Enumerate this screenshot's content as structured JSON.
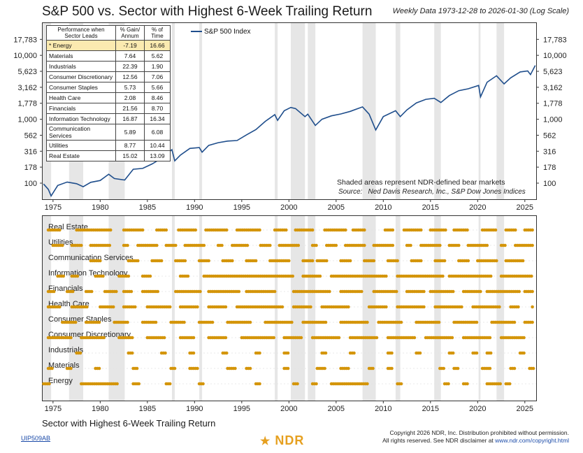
{
  "header": {
    "title": "S&P 500 vs. Sector with Highest 6-Week Trailing Return",
    "subtitle": "Weekly Data 1973-12-28 to 2026-01-30 (Log Scale)"
  },
  "table": {
    "headers": [
      "Performance when Sector Leads",
      "% Gain/ Annum",
      "% of Time"
    ],
    "rows": [
      {
        "sector": "* Energy",
        "gain": "-7.19",
        "time": "16.66",
        "highlight": true
      },
      {
        "sector": "Materials",
        "gain": "7.64",
        "time": "5.62"
      },
      {
        "sector": "Industrials",
        "gain": "22.39",
        "time": "1.90"
      },
      {
        "sector": "Consumer Discretionary",
        "gain": "12.56",
        "time": "7.06"
      },
      {
        "sector": "Consumer Staples",
        "gain": "5.73",
        "time": "5.66"
      },
      {
        "sector": "Health Care",
        "gain": "2.08",
        "time": "8.46"
      },
      {
        "sector": "Financials",
        "gain": "21.56",
        "time": "8.70"
      },
      {
        "sector": "Information Technology",
        "gain": "16.87",
        "time": "16.34"
      },
      {
        "sector": "Communication Services",
        "gain": "5.89",
        "time": "6.08"
      },
      {
        "sector": "Utilities",
        "gain": "8.77",
        "time": "10.44"
      },
      {
        "sector": "Real Estate",
        "gain": "15.02",
        "time": "13.09"
      }
    ]
  },
  "legend": {
    "label": "S&P 500 Index"
  },
  "note": "Shaded areas represent NDR-defined bear markets",
  "source_label": "Source:",
  "source_text": "Ned Davis Research, Inc., S&P Dow Jones Indices",
  "bottom_title": "Sector with Highest 6-Week Trailing Return",
  "footer": {
    "code": "UIP509AB",
    "logo": "NDR",
    "copyright_line1": "Copyright 2026 NDR, Inc. Distribution prohibited without permission.",
    "copyright_line2": "All rights reserved. See NDR disclaimer at",
    "copyright_url": "www.ndr.com/copyright.html"
  },
  "colors": {
    "line": "#1f4e8c",
    "dot": "#d4950a",
    "shade": "#e6e6e6"
  },
  "chart_data": [
    {
      "type": "line",
      "title": "S&P 500 Index",
      "scale": "log",
      "xlim": [
        1973.9,
        2026.2
      ],
      "ylim": [
        56,
        32000
      ],
      "y_ticks": [
        100,
        178,
        316,
        562,
        1000,
        1778,
        3162,
        5623,
        10000,
        17783
      ],
      "x_ticks": [
        1975,
        1980,
        1985,
        1990,
        1995,
        2000,
        2005,
        2010,
        2015,
        2020,
        2025
      ],
      "bear_markets": [
        [
          1973.9,
          1974.8
        ],
        [
          1976.7,
          1978.2
        ],
        [
          1980.9,
          1982.6
        ],
        [
          1987.6,
          1987.9
        ],
        [
          1990.5,
          1990.8
        ],
        [
          1998.5,
          1998.8
        ],
        [
          2000.2,
          2001.7
        ],
        [
          2002.0,
          2002.8
        ],
        [
          2007.8,
          2009.2
        ],
        [
          2011.3,
          2011.8
        ],
        [
          2015.4,
          2016.1
        ],
        [
          2020.1,
          2020.3
        ],
        [
          2022.0,
          2022.8
        ]
      ],
      "series": [
        {
          "name": "S&P 500 Index",
          "x": [
            1974.0,
            1974.5,
            1974.8,
            1975.5,
            1976.5,
            1977.5,
            1978.2,
            1979.0,
            1980.0,
            1980.9,
            1981.5,
            1982.6,
            1983.5,
            1984.5,
            1985.5,
            1986.5,
            1987.6,
            1987.9,
            1988.5,
            1989.5,
            1990.5,
            1990.8,
            1991.5,
            1992.5,
            1993.5,
            1994.5,
            1995.5,
            1996.5,
            1997.5,
            1998.5,
            1998.8,
            1999.5,
            2000.2,
            2000.7,
            2001.7,
            2002.0,
            2002.8,
            2003.5,
            2004.5,
            2005.5,
            2006.5,
            2007.8,
            2008.5,
            2009.2,
            2010.0,
            2011.3,
            2011.8,
            2012.5,
            2013.5,
            2014.5,
            2015.4,
            2016.1,
            2017.0,
            2018.0,
            2019.0,
            2020.1,
            2020.3,
            2021.0,
            2022.0,
            2022.8,
            2023.5,
            2024.5,
            2025.3,
            2025.6,
            2026.1
          ],
          "y": [
            97,
            80,
            63,
            92,
            104,
            98,
            88,
            103,
            110,
            138,
            118,
            112,
            165,
            170,
            200,
            245,
            335,
            223,
            275,
            350,
            360,
            305,
            390,
            430,
            455,
            465,
            570,
            690,
            930,
            1180,
            960,
            1360,
            1530,
            1470,
            1100,
            1200,
            800,
            1000,
            1130,
            1210,
            1330,
            1560,
            1200,
            680,
            1100,
            1360,
            1100,
            1400,
            1800,
            2050,
            2130,
            1830,
            2350,
            2800,
            3000,
            3380,
            2240,
            3800,
            4790,
            3580,
            4450,
            5500,
            5700,
            5000,
            6950
          ]
        }
      ]
    },
    {
      "type": "scatter",
      "title": "Sector with Highest 6-Week Trailing Return",
      "xlim": [
        1973.9,
        2026.2
      ],
      "x_ticks": [
        1975,
        1980,
        1985,
        1990,
        1995,
        2000,
        2005,
        2010,
        2015,
        2020,
        2025
      ],
      "sectors": [
        "Real Estate",
        "Utilities",
        "Communication Services",
        "Information Technology",
        "Financials",
        "Health Care",
        "Consumer Staples",
        "Consumer Discretionary",
        "Industrials",
        "Materials",
        "Energy"
      ],
      "active_periods": [
        [
          [
            1974.5,
            1975.8
          ],
          [
            1977.5,
            1981.2
          ],
          [
            1982.5,
            1984.6
          ],
          [
            1986.0,
            1987.2
          ],
          [
            1988.3,
            1990.3
          ],
          [
            1991.2,
            1993.5
          ],
          [
            1994.5,
            1997.1
          ],
          [
            1998.5,
            1999.9
          ],
          [
            2000.7,
            2002.7
          ],
          [
            2003.8,
            2006.2
          ],
          [
            2006.8,
            2008.1
          ],
          [
            2010.2,
            2011.1
          ],
          [
            2012.2,
            2014.1
          ],
          [
            2015.0,
            2016.8
          ],
          [
            2017.5,
            2019.1
          ],
          [
            2020.5,
            2022.0
          ],
          [
            2023.0,
            2024.2
          ],
          [
            2025.0,
            2025.9
          ]
        ],
        [
          [
            1975.0,
            1976.1
          ],
          [
            1977.0,
            1978.1
          ],
          [
            1979.0,
            1981.1
          ],
          [
            1982.5,
            1983.1
          ],
          [
            1984.0,
            1986.1
          ],
          [
            1987.0,
            1988.1
          ],
          [
            1989.0,
            1991.1
          ],
          [
            1992.5,
            1993.1
          ],
          [
            1994.0,
            1995.7
          ],
          [
            1997.0,
            1998.1
          ],
          [
            1999.0,
            2001.1
          ],
          [
            2002.5,
            2003.1
          ],
          [
            2004.0,
            2005.1
          ],
          [
            2006.0,
            2008.1
          ],
          [
            2009.0,
            2011.1
          ],
          [
            2012.5,
            2013.1
          ],
          [
            2014.0,
            2016.1
          ],
          [
            2017.0,
            2018.1
          ],
          [
            2019.0,
            2021.1
          ],
          [
            2022.5,
            2023.1
          ],
          [
            2024.0,
            2025.9
          ]
        ],
        [
          [
            1979.0,
            1980.1
          ],
          [
            1983.0,
            1984.1
          ],
          [
            1985.5,
            1986.6
          ],
          [
            1988.0,
            1989.1
          ],
          [
            1990.5,
            1991.6
          ],
          [
            1993.0,
            1994.1
          ],
          [
            1995.5,
            1996.6
          ],
          [
            1998.0,
            2000.1
          ],
          [
            2001.5,
            2002.6
          ],
          [
            2003.0,
            2004.1
          ],
          [
            2005.5,
            2006.6
          ],
          [
            2008.0,
            2009.1
          ],
          [
            2010.5,
            2011.6
          ],
          [
            2013.0,
            2014.1
          ],
          [
            2015.5,
            2016.6
          ],
          [
            2018.0,
            2019.1
          ],
          [
            2020.0,
            2022.1
          ],
          [
            2023.0,
            2025.0
          ]
        ],
        [
          [
            1975.5,
            1976.3
          ],
          [
            1977.0,
            1977.8
          ],
          [
            1979.5,
            1980.5
          ],
          [
            1982.0,
            1983.1
          ],
          [
            1984.5,
            1985.5
          ],
          [
            1988.5,
            1989.5
          ],
          [
            1991.0,
            2000.5
          ],
          [
            2001.5,
            2003.5
          ],
          [
            2004.5,
            2010.5
          ],
          [
            2011.5,
            2016.5
          ],
          [
            2017.0,
            2021.5
          ],
          [
            2022.5,
            2025.9
          ]
        ],
        [
          [
            1974.5,
            1975.3
          ],
          [
            1976.5,
            1977.3
          ],
          [
            1978.5,
            1979.3
          ],
          [
            1980.5,
            1981.8
          ],
          [
            1982.5,
            1983.5
          ],
          [
            1984.5,
            1986.2
          ],
          [
            1988.0,
            1990.8
          ],
          [
            1991.5,
            1994.8
          ],
          [
            1995.5,
            1998.6
          ],
          [
            2000.5,
            2004.5
          ],
          [
            2005.5,
            2007.8
          ],
          [
            2009.0,
            2011.5
          ],
          [
            2012.5,
            2014.5
          ],
          [
            2015.0,
            2017.5
          ],
          [
            2018.5,
            2020.5
          ],
          [
            2021.0,
            2024.5
          ],
          [
            2025.0,
            2025.9
          ]
        ],
        [
          [
            1974.5,
            1975.8
          ],
          [
            1977.0,
            1978.8
          ],
          [
            1980.0,
            1981.5
          ],
          [
            1982.5,
            1983.8
          ],
          [
            1985.0,
            1987.5
          ],
          [
            1988.5,
            1990.5
          ],
          [
            1991.5,
            1993.5
          ],
          [
            1994.5,
            1999.5
          ],
          [
            2000.5,
            2002.5
          ],
          [
            2003.5,
            2006.5
          ],
          [
            2008.5,
            2010.5
          ],
          [
            2011.5,
            2014.5
          ],
          [
            2015.5,
            2018.5
          ],
          [
            2019.5,
            2022.5
          ],
          [
            2023.5,
            2024.5
          ],
          [
            2025.8,
            2025.95
          ]
        ],
        [
          [
            1976.0,
            1977.5
          ],
          [
            1978.5,
            1980.0
          ],
          [
            1981.5,
            1983.0
          ],
          [
            1984.5,
            1986.0
          ],
          [
            1987.5,
            1989.0
          ],
          [
            1990.5,
            1992.0
          ],
          [
            1993.5,
            1996.0
          ],
          [
            1997.5,
            2000.5
          ],
          [
            2001.5,
            2004.0
          ],
          [
            2005.5,
            2008.5
          ],
          [
            2009.5,
            2012.0
          ],
          [
            2013.5,
            2016.0
          ],
          [
            2017.5,
            2020.0
          ],
          [
            2021.5,
            2024.0
          ],
          [
            2025.0,
            2025.9
          ]
        ],
        [
          [
            1974.5,
            1977.0
          ],
          [
            1978.0,
            1980.5
          ],
          [
            1982.0,
            1983.5
          ],
          [
            1985.0,
            1987.0
          ],
          [
            1988.5,
            1990.0
          ],
          [
            1991.5,
            1993.5
          ],
          [
            1995.0,
            1998.5
          ],
          [
            1999.5,
            2001.5
          ],
          [
            2002.5,
            2005.5
          ],
          [
            2006.5,
            2009.5
          ],
          [
            2010.5,
            2013.5
          ],
          [
            2014.5,
            2017.5
          ],
          [
            2018.5,
            2021.5
          ],
          [
            2022.5,
            2025.0
          ]
        ],
        [
          [
            1977.5,
            1978.0
          ],
          [
            1983.0,
            1983.5
          ],
          [
            1986.5,
            1987.0
          ],
          [
            1989.5,
            1990.0
          ],
          [
            1993.0,
            1993.5
          ],
          [
            1996.5,
            1997.0
          ],
          [
            1999.5,
            2000.0
          ],
          [
            2003.5,
            2004.0
          ],
          [
            2006.5,
            2007.0
          ],
          [
            2010.5,
            2011.0
          ],
          [
            2013.5,
            2014.0
          ],
          [
            2017.0,
            2017.5
          ],
          [
            2019.5,
            2020.0
          ],
          [
            2021.0,
            2021.5
          ],
          [
            2024.5,
            2025.0
          ]
        ],
        [
          [
            1974.5,
            1975.0
          ],
          [
            1976.5,
            1977.0
          ],
          [
            1979.5,
            1980.0
          ],
          [
            1983.5,
            1984.0
          ],
          [
            1987.5,
            1988.0
          ],
          [
            1989.5,
            1990.5
          ],
          [
            1993.5,
            1994.5
          ],
          [
            1995.5,
            1996.0
          ],
          [
            1999.5,
            2000.0
          ],
          [
            2003.0,
            2004.0
          ],
          [
            2005.5,
            2006.5
          ],
          [
            2008.5,
            2009.0
          ],
          [
            2010.5,
            2011.0
          ],
          [
            2016.0,
            2016.5
          ],
          [
            2017.5,
            2018.0
          ],
          [
            2020.5,
            2021.5
          ],
          [
            2023.5,
            2024.0
          ],
          [
            2025.5,
            2025.9
          ]
        ],
        [
          [
            1974.0,
            1974.8
          ],
          [
            1978.0,
            1982.0
          ],
          [
            1983.5,
            1984.2
          ],
          [
            1987.0,
            1987.5
          ],
          [
            1990.5,
            1991.0
          ],
          [
            1996.5,
            1997.0
          ],
          [
            2000.5,
            2001.0
          ],
          [
            2002.5,
            2003.0
          ],
          [
            2004.5,
            2008.5
          ],
          [
            2011.5,
            2012.0
          ],
          [
            2016.5,
            2017.0
          ],
          [
            2018.5,
            2019.0
          ],
          [
            2021.0,
            2022.5
          ],
          [
            2023.0,
            2023.5
          ]
        ]
      ]
    }
  ]
}
